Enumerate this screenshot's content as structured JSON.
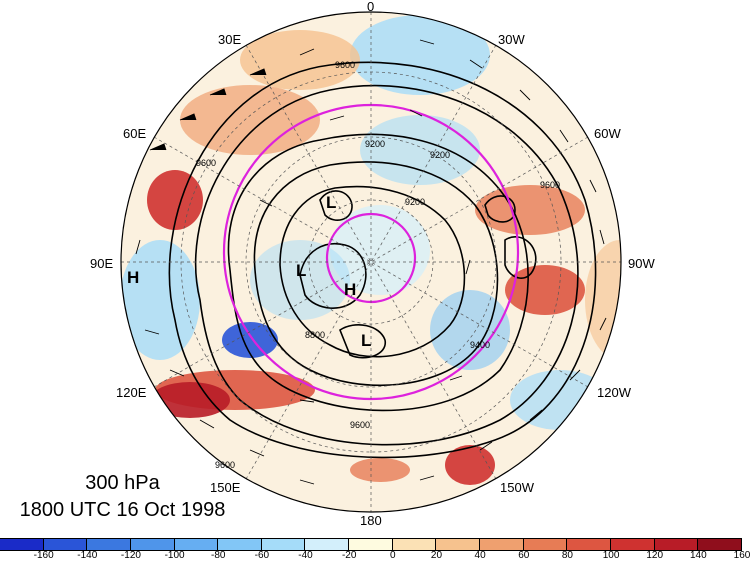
{
  "title": {
    "level": "300 hPa",
    "time": "1800 UTC 16 Oct 1998"
  },
  "longitude_labels": {
    "top": "0",
    "bottom": "180",
    "left": "90E",
    "right": "90W",
    "upper_left_a": "30E",
    "upper_left_b": "60E",
    "upper_right_a": "30W",
    "upper_right_b": "60W",
    "lower_left_a": "120E",
    "lower_left_b": "150E",
    "lower_right_a": "120W",
    "lower_right_b": "150W"
  },
  "pressure_centers": [
    {
      "type": "L"
    },
    {
      "type": "L"
    },
    {
      "type": "H"
    },
    {
      "type": "L"
    },
    {
      "type": "H"
    }
  ],
  "contour_labels": [
    "9600",
    "9600",
    "9200",
    "9200",
    "9600",
    "9600",
    "8800",
    "9200",
    "9400",
    "9600"
  ],
  "colorbar": {
    "ticks": [
      "-160",
      "-140",
      "-120",
      "-100",
      "-80",
      "-60",
      "-40",
      "-20",
      "0",
      "20",
      "40",
      "60",
      "80",
      "100",
      "120",
      "140",
      "160"
    ],
    "colors": [
      "#1a2bc8",
      "#2a55d8",
      "#3b78e0",
      "#4f95ea",
      "#66aef2",
      "#82c6f6",
      "#a5dcf9",
      "#d3effb",
      "#fefbe0",
      "#fbe1b5",
      "#f6c28e",
      "#efa06f",
      "#e77c55",
      "#dd5641",
      "#cf3230",
      "#b81c27",
      "#8f0e1c"
    ]
  },
  "line_colors": {
    "contour": "#000000",
    "jet_circle": "#dd22dd"
  }
}
